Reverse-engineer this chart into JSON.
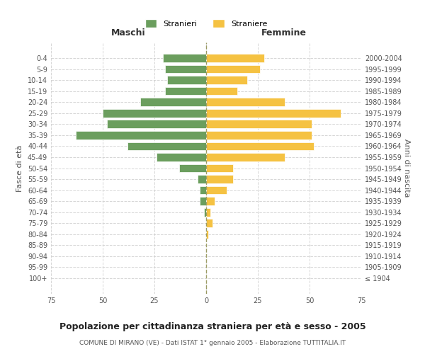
{
  "age_groups": [
    "100+",
    "95-99",
    "90-94",
    "85-89",
    "80-84",
    "75-79",
    "70-74",
    "65-69",
    "60-64",
    "55-59",
    "50-54",
    "45-49",
    "40-44",
    "35-39",
    "30-34",
    "25-29",
    "20-24",
    "15-19",
    "10-14",
    "5-9",
    "0-4"
  ],
  "birth_years": [
    "≤ 1904",
    "1905-1909",
    "1910-1914",
    "1915-1919",
    "1920-1924",
    "1925-1929",
    "1930-1934",
    "1935-1939",
    "1940-1944",
    "1945-1949",
    "1950-1954",
    "1955-1959",
    "1960-1964",
    "1965-1969",
    "1970-1974",
    "1975-1979",
    "1980-1984",
    "1985-1989",
    "1990-1994",
    "1995-1999",
    "2000-2004"
  ],
  "maschi": [
    0,
    0,
    0,
    0,
    0,
    0,
    1,
    3,
    3,
    4,
    13,
    24,
    38,
    63,
    48,
    50,
    32,
    20,
    19,
    20,
    21
  ],
  "femmine": [
    0,
    0,
    0,
    0,
    1,
    3,
    2,
    4,
    10,
    13,
    13,
    38,
    52,
    51,
    51,
    65,
    38,
    15,
    20,
    26,
    28
  ],
  "maschi_color": "#6b9e5e",
  "femmine_color": "#f5c242",
  "title": "Popolazione per cittadinanza straniera per età e sesso - 2005",
  "subtitle": "COMUNE DI MIRANO (VE) - Dati ISTAT 1° gennaio 2005 - Elaborazione TUTTITALIA.IT",
  "ylabel_left": "Fasce di età",
  "ylabel_right": "Anni di nascita",
  "xlabel_maschi": "Maschi",
  "xlabel_femmine": "Femmine",
  "legend_maschi": "Stranieri",
  "legend_femmine": "Straniere",
  "xlim": 75,
  "background_color": "#ffffff",
  "grid_color": "#cccccc"
}
